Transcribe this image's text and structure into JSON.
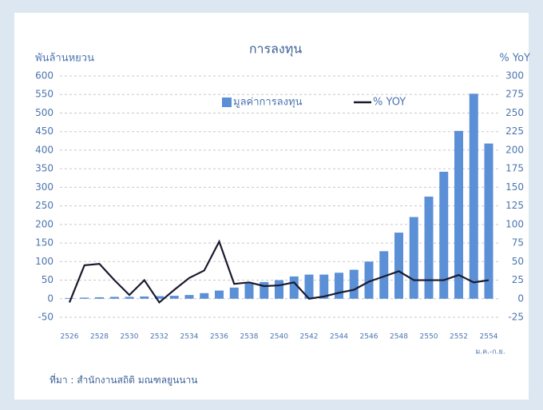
{
  "chart_data": {
    "type": "bar_line",
    "title": "การลงทุน",
    "y_label": "พันล้านหยวน",
    "y2_label": "% YoY",
    "annotation": "ม.ค.-ก.ย.",
    "source": "ที่มา : สำนักงานสถิติ มณฑลยูนนาน",
    "categories": [
      "2526",
      null,
      "2528",
      null,
      "2530",
      null,
      "2532",
      null,
      "2534",
      null,
      "2536",
      null,
      "2538",
      null,
      "2540",
      null,
      "2542",
      null,
      "2544",
      null,
      "2546",
      null,
      "2548",
      null,
      "2550",
      null,
      "2552",
      null,
      "2554"
    ],
    "series": [
      {
        "name": "มูลค่าการลงทุน",
        "type": "bar",
        "color": "#5b8fd6",
        "values": [
          2,
          3,
          4,
          5,
          5,
          6,
          7,
          8,
          10,
          15,
          22,
          30,
          42,
          45,
          50,
          60,
          65,
          65,
          70,
          78,
          100,
          128,
          178,
          220,
          275,
          342,
          452,
          552,
          418
        ]
      },
      {
        "name": "% YOY",
        "type": "line",
        "color": "#1a1a2e",
        "axis": "y2",
        "values": [
          -5,
          45,
          47,
          25,
          5,
          25,
          -5,
          12,
          28,
          38,
          77,
          20,
          22,
          17,
          18,
          22,
          0,
          3,
          8,
          12,
          23,
          30,
          37,
          25,
          25,
          25,
          32,
          22,
          25
        ]
      }
    ],
    "ylim": [
      -50,
      600
    ],
    "yticks": [
      -50,
      0,
      50,
      100,
      150,
      200,
      250,
      300,
      350,
      400,
      450,
      500,
      550,
      600
    ],
    "y2lim": [
      -25,
      300
    ],
    "y2ticks": [
      -25,
      0,
      25,
      50,
      75,
      100,
      125,
      150,
      175,
      200,
      225,
      250,
      275,
      300
    ],
    "grid": true
  }
}
